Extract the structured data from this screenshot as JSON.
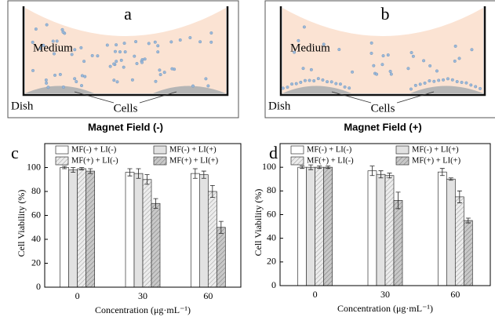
{
  "diagrams": [
    {
      "label": "a",
      "medium": "Medium",
      "dish": "Dish",
      "cells": "Cells",
      "caption": "Magnet Field (-)"
    },
    {
      "label": "b",
      "medium": "Medium",
      "dish": "Dish",
      "cells": "Cells",
      "caption": "Magnet Field (+)"
    }
  ],
  "chart_data": [
    {
      "type": "bar",
      "panel": "c",
      "ylabel": "Cell Viability (%)",
      "xlabel": "Concentration (μg·mL⁻¹)",
      "categories": [
        "0",
        "30",
        "60"
      ],
      "series": [
        {
          "name": "MF(-) + LI(-)",
          "color": "#ffffff",
          "hatch": false,
          "values": [
            100,
            96,
            95
          ],
          "errors": [
            1,
            3,
            4
          ]
        },
        {
          "name": "MF(-) + LI(+)",
          "color": "#e2e2e2",
          "hatch": false,
          "values": [
            98,
            95,
            94
          ],
          "errors": [
            2,
            4,
            3
          ]
        },
        {
          "name": "MF(+) + LI(-)",
          "color": "#ececec",
          "hatch": true,
          "values": [
            99,
            90,
            80
          ],
          "errors": [
            1,
            4,
            5
          ]
        },
        {
          "name": "MF(+) + LI(+)",
          "color": "#c8c8c8",
          "hatch": true,
          "values": [
            97,
            70,
            50
          ],
          "errors": [
            2,
            4,
            5
          ]
        }
      ],
      "ylim": [
        0,
        120
      ],
      "yticks": [
        0,
        20,
        40,
        60,
        80,
        100
      ]
    },
    {
      "type": "bar",
      "panel": "d",
      "ylabel": "Cell Viability (%)",
      "xlabel": "Concentration (μg·mL⁻¹)",
      "categories": [
        "0",
        "30",
        "60"
      ],
      "series": [
        {
          "name": "MF(-) + LI(-)",
          "color": "#ffffff",
          "hatch": false,
          "values": [
            100,
            97,
            96
          ],
          "errors": [
            1,
            4,
            3
          ]
        },
        {
          "name": "MF(-) + LI(+)",
          "color": "#e2e2e2",
          "hatch": false,
          "values": [
            100,
            94,
            90
          ],
          "errors": [
            2,
            3,
            1
          ]
        },
        {
          "name": "MF(+) + LI(-)",
          "color": "#ececec",
          "hatch": true,
          "values": [
            100,
            93,
            75
          ],
          "errors": [
            1,
            2,
            5
          ]
        },
        {
          "name": "MF(+) + LI(+)",
          "color": "#c8c8c8",
          "hatch": true,
          "values": [
            100,
            72,
            55
          ],
          "errors": [
            1,
            7,
            2
          ]
        }
      ],
      "ylim": [
        0,
        120
      ],
      "yticks": [
        0,
        20,
        40,
        60,
        80,
        100
      ]
    }
  ]
}
